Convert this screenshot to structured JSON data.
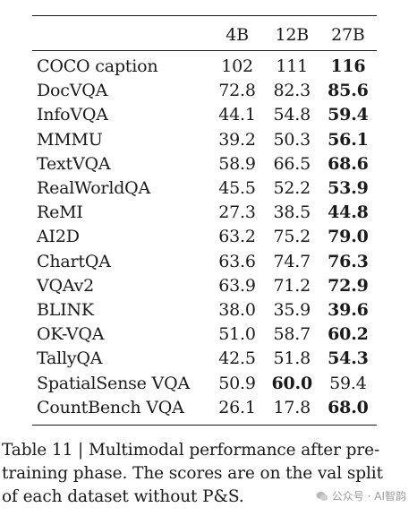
{
  "table": {
    "columns": [
      "",
      "4B",
      "12B",
      "27B"
    ],
    "rows": [
      {
        "name": "COCO caption",
        "v4b": "102",
        "v12b": "111",
        "v27b": "116",
        "bold": "v27b"
      },
      {
        "name": "DocVQA",
        "v4b": "72.8",
        "v12b": "82.3",
        "v27b": "85.6",
        "bold": "v27b"
      },
      {
        "name": "InfoVQA",
        "v4b": "44.1",
        "v12b": "54.8",
        "v27b": "59.4",
        "bold": "v27b"
      },
      {
        "name": "MMMU",
        "v4b": "39.2",
        "v12b": "50.3",
        "v27b": "56.1",
        "bold": "v27b"
      },
      {
        "name": "TextVQA",
        "v4b": "58.9",
        "v12b": "66.5",
        "v27b": "68.6",
        "bold": "v27b"
      },
      {
        "name": "RealWorldQA",
        "v4b": "45.5",
        "v12b": "52.2",
        "v27b": "53.9",
        "bold": "v27b"
      },
      {
        "name": "ReMI",
        "v4b": "27.3",
        "v12b": "38.5",
        "v27b": "44.8",
        "bold": "v27b"
      },
      {
        "name": "AI2D",
        "v4b": "63.2",
        "v12b": "75.2",
        "v27b": "79.0",
        "bold": "v27b"
      },
      {
        "name": "ChartQA",
        "v4b": "63.6",
        "v12b": "74.7",
        "v27b": "76.3",
        "bold": "v27b"
      },
      {
        "name": "VQAv2",
        "v4b": "63.9",
        "v12b": "71.2",
        "v27b": "72.9",
        "bold": "v27b"
      },
      {
        "name": "BLINK",
        "v4b": "38.0",
        "v12b": "35.9",
        "v27b": "39.6",
        "bold": "v27b"
      },
      {
        "name": "OK-VQA",
        "v4b": "51.0",
        "v12b": "58.7",
        "v27b": "60.2",
        "bold": "v27b"
      },
      {
        "name": "TallyQA",
        "v4b": "42.5",
        "v12b": "51.8",
        "v27b": "54.3",
        "bold": "v27b"
      },
      {
        "name": "SpatialSense VQA",
        "v4b": "50.9",
        "v12b": "60.0",
        "v27b": "59.4",
        "bold": "v12b"
      },
      {
        "name": "CountBench VQA",
        "v4b": "26.1",
        "v12b": "17.8",
        "v27b": "68.0",
        "bold": "v27b"
      }
    ]
  },
  "caption": {
    "lines": [
      "Table 11 | Multimodal performance after pre-",
      "training phase.  The scores are on the val split",
      "of each dataset without P&S."
    ]
  },
  "watermark": {
    "icon": "wechat-icon",
    "text": "公众号 · AI智韵"
  }
}
